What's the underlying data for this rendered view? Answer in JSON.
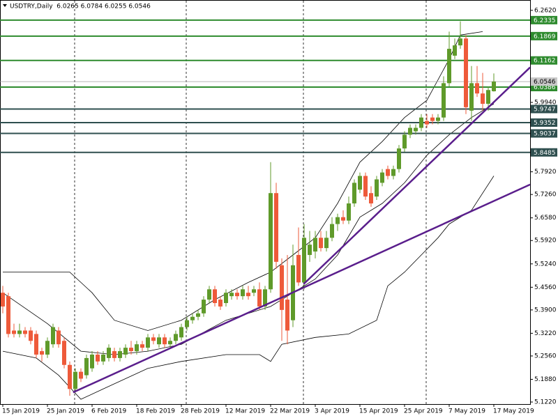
{
  "chart_data": {
    "type": "candlestick",
    "title": "USDTRY,Daily  6.0265 6.0784 6.0255 6.0546",
    "categories": [
      "15 Jan 2019",
      null,
      null,
      null,
      null,
      null,
      null,
      null,
      "25 Jan 2019",
      null,
      null,
      null,
      null,
      null,
      null,
      null,
      "6 Feb 2019",
      null,
      null,
      null,
      null,
      null,
      null,
      null,
      "18 Feb 2019",
      null,
      null,
      null,
      null,
      null,
      null,
      null,
      "28 Feb 2019",
      null,
      null,
      null,
      null,
      null,
      null,
      null,
      "12 Mar 2019",
      null,
      null,
      null,
      null,
      null,
      null,
      null,
      "22 Mar 2019",
      null,
      null,
      null,
      null,
      null,
      null,
      null,
      "3 Apr 2019",
      null,
      null,
      null,
      null,
      null,
      null,
      null,
      "15 Apr 2019",
      null,
      null,
      null,
      null,
      null,
      null,
      null,
      "25 Apr 2019",
      null,
      null,
      null,
      null,
      null,
      null,
      null,
      "7 May 2019",
      null,
      null,
      null,
      null,
      null,
      null,
      null,
      "17 May 2019"
    ],
    "open": [
      5.44,
      5.43,
      5.33,
      5.32,
      5.33,
      5.33,
      5.32,
      5.27,
      5.26,
      5.29,
      5.33,
      5.3,
      5.23,
      5.16,
      5.21,
      5.2,
      5.22,
      5.26,
      5.24,
      5.25,
      5.27,
      5.25,
      5.26,
      5.28,
      5.27,
      5.29,
      5.28,
      5.31,
      5.29,
      5.31,
      5.29,
      5.3,
      5.31,
      5.34,
      5.36,
      5.37,
      5.38,
      5.42,
      5.45,
      5.42,
      5.41,
      5.43,
      5.44,
      5.43,
      5.44,
      5.44,
      5.45,
      5.4,
      5.45,
      5.73,
      5.52,
      5.42,
      5.36,
      5.55,
      5.47,
      5.55,
      5.56,
      5.6,
      5.57,
      5.6,
      5.64,
      5.66,
      5.65,
      5.7,
      5.74,
      5.78,
      5.73,
      5.72,
      5.76,
      5.8,
      5.78,
      5.8,
      5.86,
      5.9,
      5.91,
      5.92,
      5.94,
      5.95,
      5.94,
      5.95,
      6.05,
      6.13,
      6.16,
      6.18,
      5.97,
      6.05,
      6.02,
      5.99,
      6.0265
    ],
    "high": [
      5.46,
      5.44,
      5.35,
      5.35,
      5.34,
      5.34,
      5.33,
      5.28,
      5.31,
      5.35,
      5.34,
      5.31,
      5.24,
      5.22,
      5.22,
      5.26,
      5.27,
      5.27,
      5.27,
      5.29,
      5.28,
      5.28,
      5.29,
      5.3,
      5.3,
      5.3,
      5.32,
      5.32,
      5.32,
      5.32,
      5.31,
      5.33,
      5.35,
      5.37,
      5.38,
      5.39,
      5.43,
      5.46,
      5.46,
      5.43,
      5.45,
      5.45,
      5.45,
      5.46,
      5.46,
      5.46,
      5.47,
      5.46,
      5.82,
      5.76,
      5.54,
      5.55,
      5.58,
      5.63,
      5.64,
      5.62,
      5.62,
      5.62,
      5.62,
      5.66,
      5.67,
      5.68,
      5.72,
      5.77,
      5.79,
      5.79,
      5.75,
      5.78,
      5.8,
      5.81,
      5.81,
      5.87,
      5.91,
      5.93,
      5.93,
      5.96,
      5.96,
      5.96,
      5.96,
      6.07,
      6.2,
      6.18,
      6.23,
      6.19,
      6.1,
      6.1,
      6.08,
      6.04,
      6.0784
    ],
    "low": [
      5.38,
      5.31,
      5.31,
      5.31,
      5.31,
      5.29,
      5.25,
      5.24,
      5.25,
      5.28,
      5.28,
      5.22,
      5.14,
      5.15,
      5.18,
      5.19,
      5.21,
      5.23,
      5.23,
      5.24,
      5.24,
      5.24,
      5.25,
      5.26,
      5.26,
      5.27,
      5.27,
      5.29,
      5.28,
      5.28,
      5.28,
      5.29,
      5.3,
      5.33,
      5.35,
      5.36,
      5.37,
      5.41,
      5.4,
      5.39,
      5.4,
      5.42,
      5.42,
      5.42,
      5.42,
      5.43,
      5.39,
      5.39,
      5.44,
      5.51,
      5.3,
      5.29,
      5.34,
      5.46,
      5.45,
      5.53,
      5.54,
      5.56,
      5.56,
      5.59,
      5.62,
      5.64,
      5.64,
      5.69,
      5.73,
      5.71,
      5.69,
      5.71,
      5.75,
      5.77,
      5.77,
      5.79,
      5.85,
      5.89,
      5.9,
      5.91,
      5.92,
      5.93,
      5.93,
      5.94,
      6.04,
      6.12,
      6.15,
      5.96,
      5.94,
      6.01,
      5.97,
      5.97,
      6.0255
    ],
    "close": [
      5.4,
      5.32,
      5.32,
      5.33,
      5.32,
      5.3,
      5.26,
      5.26,
      5.3,
      5.34,
      5.29,
      5.23,
      5.16,
      5.21,
      5.19,
      5.25,
      5.26,
      5.24,
      5.26,
      5.28,
      5.25,
      5.27,
      5.28,
      5.27,
      5.29,
      5.28,
      5.31,
      5.3,
      5.31,
      5.29,
      5.3,
      5.32,
      5.34,
      5.36,
      5.37,
      5.38,
      5.42,
      5.45,
      5.41,
      5.4,
      5.44,
      5.44,
      5.43,
      5.45,
      5.43,
      5.45,
      5.4,
      5.45,
      5.73,
      5.53,
      5.39,
      5.33,
      5.52,
      5.47,
      5.6,
      5.58,
      5.6,
      5.57,
      5.6,
      5.64,
      5.66,
      5.65,
      5.7,
      5.76,
      5.78,
      5.72,
      5.7,
      5.77,
      5.79,
      5.78,
      5.8,
      5.86,
      5.9,
      5.92,
      5.92,
      5.95,
      5.93,
      5.94,
      5.95,
      6.05,
      6.15,
      6.16,
      6.18,
      5.98,
      6.05,
      6.02,
      5.99,
      6.03,
      6.0546
    ],
    "up_color": "#5f9a2a",
    "down_color": "#ee5a3a",
    "xlim": [
      0,
      94.5
    ],
    "ylim": [
      5.116,
      6.288
    ],
    "yticks": [
      {
        "value": 6.262,
        "label": "6.2620"
      },
      {
        "value": 5.994,
        "label": "5.9940"
      },
      {
        "value": 5.792,
        "label": "5.7920"
      },
      {
        "value": 5.726,
        "label": "5.7260"
      },
      {
        "value": 5.658,
        "label": "5.6580"
      },
      {
        "value": 5.592,
        "label": "5.5920"
      },
      {
        "value": 5.524,
        "label": "5.5240"
      },
      {
        "value": 5.456,
        "label": "5.4560"
      },
      {
        "value": 5.39,
        "label": "5.3900"
      },
      {
        "value": 5.322,
        "label": "5.3220"
      },
      {
        "value": 5.256,
        "label": "5.2560"
      },
      {
        "value": 5.188,
        "label": "5.1880"
      },
      {
        "value": 5.122,
        "label": "5.1220"
      }
    ],
    "levels": [
      {
        "value": 6.2335,
        "color": "#2e8b2e"
      },
      {
        "value": 6.1869,
        "color": "#2e8b2e"
      },
      {
        "value": 6.1162,
        "color": "#2e8b2e"
      },
      {
        "value": 6.0386,
        "color": "#2e8b2e"
      },
      {
        "value": 5.9747,
        "color": "#2f4f4f"
      },
      {
        "value": 5.9352,
        "color": "#2f4f4f"
      },
      {
        "value": 5.9037,
        "color": "#2f4f4f"
      },
      {
        "value": 5.8485,
        "color": "#2f4f4f"
      }
    ],
    "last_price": 6.0546,
    "overlays": [
      {
        "color": "#000000",
        "x": [
          0,
          12,
          16,
          20,
          26,
          32,
          38,
          44,
          48,
          52,
          56,
          60,
          64,
          68,
          72,
          76,
          80,
          82,
          86
        ],
        "values": [
          5.5,
          5.5,
          5.44,
          5.36,
          5.33,
          5.36,
          5.42,
          5.47,
          5.5,
          5.55,
          5.6,
          5.7,
          5.82,
          5.88,
          5.95,
          6.0,
          6.12,
          6.19,
          6.2
        ]
      },
      {
        "color": "#000000",
        "x": [
          0,
          8,
          14,
          20,
          26,
          32,
          40,
          48,
          52,
          56,
          60,
          64,
          68,
          72,
          76,
          80,
          84,
          88
        ],
        "values": [
          5.44,
          5.35,
          5.27,
          5.26,
          5.27,
          5.29,
          5.36,
          5.4,
          5.44,
          5.48,
          5.55,
          5.66,
          5.7,
          5.76,
          5.84,
          5.9,
          5.95,
          5.99
        ]
      },
      {
        "color": "#000000",
        "x": [
          0,
          6,
          10,
          14,
          18,
          22,
          26,
          32,
          40,
          46,
          48,
          50,
          56,
          62,
          67,
          69,
          72,
          75,
          78,
          80,
          84,
          88
        ],
        "values": [
          5.27,
          5.25,
          5.2,
          5.13,
          5.16,
          5.19,
          5.22,
          5.24,
          5.26,
          5.26,
          5.24,
          5.29,
          5.31,
          5.32,
          5.36,
          5.46,
          5.5,
          5.55,
          5.6,
          5.64,
          5.68,
          5.78
        ]
      }
    ],
    "trend_lines": [
      {
        "color": "#5a1e8c",
        "x": [
          12.6,
          94.5
        ],
        "values": [
          5.15,
          5.755
        ]
      },
      {
        "color": "#5a1e8c",
        "x": [
          53.9,
          94.5
        ],
        "values": [
          5.465,
          6.096
        ]
      }
    ]
  }
}
